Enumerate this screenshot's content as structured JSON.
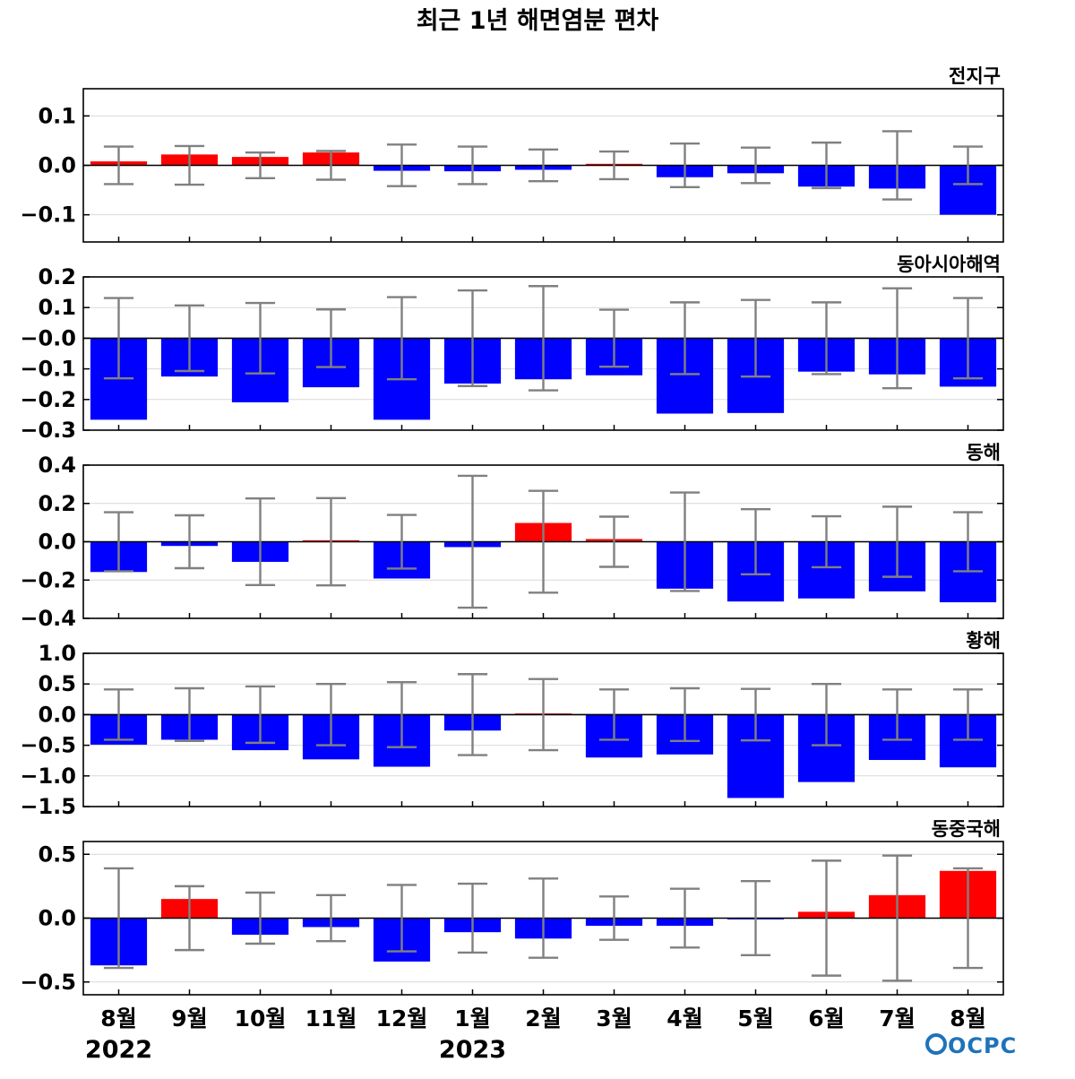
{
  "title": "최근 1년 해면염분 편차",
  "logo": "OCPC",
  "colors": {
    "positive": "#ff0000",
    "negative": "#0000ff",
    "error": "#808080",
    "zero_line": "#000000",
    "grid": "#d9d9d9",
    "logo": "#1e73b9"
  },
  "chart_data": {
    "type": "bar",
    "categories": [
      "8월",
      "9월",
      "10월",
      "11월",
      "12월",
      "1월",
      "2월",
      "3월",
      "4월",
      "5월",
      "6월",
      "7월",
      "8월"
    ],
    "years": [
      {
        "label": "2022",
        "index": 0
      },
      {
        "label": "2023",
        "index": 5
      }
    ],
    "panels": [
      {
        "name": "전지구",
        "ylim": [
          -0.155,
          0.155
        ],
        "yticks": [
          0.1,
          0.0,
          -0.1
        ],
        "ytick_labels": [
          "0.1",
          "0.0",
          "−0.1"
        ],
        "values": [
          0.008,
          0.022,
          0.017,
          0.026,
          -0.011,
          -0.012,
          -0.009,
          0.002,
          -0.024,
          -0.016,
          -0.043,
          -0.047,
          -0.1
        ],
        "error": [
          0.038,
          0.039,
          0.026,
          0.029,
          0.042,
          0.038,
          0.032,
          0.028,
          0.044,
          0.036,
          0.046,
          0.069,
          0.038
        ]
      },
      {
        "name": "동아시아해역",
        "ylim": [
          -0.3,
          0.2
        ],
        "yticks": [
          0.2,
          0.1,
          0.0,
          -0.1,
          -0.2,
          -0.3
        ],
        "ytick_labels": [
          "0.2",
          "0.1",
          "−0.0",
          "−0.1",
          "−0.2",
          "−0.3"
        ],
        "values": [
          -0.266,
          -0.125,
          -0.209,
          -0.16,
          -0.266,
          -0.148,
          -0.134,
          -0.121,
          -0.246,
          -0.244,
          -0.109,
          -0.118,
          -0.158
        ],
        "error": [
          0.131,
          0.107,
          0.115,
          0.094,
          0.134,
          0.156,
          0.17,
          0.093,
          0.117,
          0.125,
          0.117,
          0.163,
          0.131
        ]
      },
      {
        "name": "동해",
        "ylim": [
          -0.4,
          0.4
        ],
        "yticks": [
          0.4,
          0.2,
          0.0,
          -0.2,
          -0.4
        ],
        "ytick_labels": [
          "0.4",
          "0.2",
          "0.0",
          "−0.2",
          "−0.4"
        ],
        "values": [
          -0.158,
          -0.022,
          -0.105,
          0.005,
          -0.192,
          -0.028,
          0.098,
          0.014,
          -0.245,
          -0.312,
          -0.296,
          -0.259,
          -0.316
        ],
        "error": [
          0.154,
          0.138,
          0.226,
          0.228,
          0.14,
          0.344,
          0.266,
          0.131,
          0.257,
          0.17,
          0.133,
          0.183,
          0.154
        ]
      },
      {
        "name": "황해",
        "ylim": [
          -1.5,
          1.0
        ],
        "yticks": [
          1.0,
          0.5,
          0.0,
          -0.5,
          -1.0,
          -1.5
        ],
        "ytick_labels": [
          "1.0",
          "0.5",
          "0.0",
          "−0.5",
          "−1.0",
          "−1.5"
        ],
        "values": [
          -0.49,
          -0.41,
          -0.58,
          -0.73,
          -0.85,
          -0.26,
          0.01,
          -0.7,
          -0.65,
          -1.36,
          -1.1,
          -0.74,
          -0.86
        ],
        "error": [
          0.41,
          0.43,
          0.46,
          0.5,
          0.53,
          0.66,
          0.58,
          0.41,
          0.43,
          0.42,
          0.5,
          0.41,
          0.41
        ]
      },
      {
        "name": "동중국해",
        "ylim": [
          -0.6,
          0.6
        ],
        "yticks": [
          0.5,
          0.0,
          -0.5
        ],
        "ytick_labels": [
          "0.5",
          "0.0",
          "−0.5"
        ],
        "values": [
          -0.37,
          0.15,
          -0.13,
          -0.07,
          -0.34,
          -0.11,
          -0.16,
          -0.06,
          -0.06,
          -0.01,
          0.05,
          0.18,
          0.37
        ],
        "error": [
          0.39,
          0.25,
          0.2,
          0.18,
          0.26,
          0.27,
          0.31,
          0.17,
          0.23,
          0.29,
          0.45,
          0.49,
          0.39
        ]
      }
    ]
  }
}
